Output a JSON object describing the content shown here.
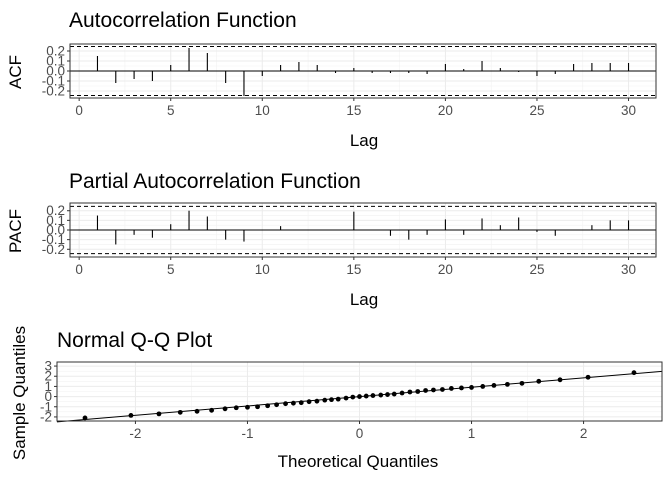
{
  "chart_data": [
    {
      "type": "bar",
      "title": "Autocorrelation Function",
      "xlabel": "Lag",
      "ylabel": "ACF",
      "xlim": [
        -0.5,
        31.5
      ],
      "ylim": [
        -0.27,
        0.27
      ],
      "xticks": [
        "0",
        "5",
        "10",
        "15",
        "20",
        "25",
        "30"
      ],
      "yticks": [
        "-0.2",
        "-0.1",
        "0.0",
        "0.1",
        "0.2"
      ],
      "confidence_bounds": [
        -0.245,
        0.245
      ],
      "x": [
        1,
        2,
        3,
        4,
        5,
        6,
        7,
        8,
        9,
        10,
        11,
        12,
        13,
        14,
        15,
        16,
        17,
        18,
        19,
        20,
        21,
        22,
        23,
        24,
        25,
        26,
        27,
        28,
        29,
        30
      ],
      "values": [
        0.15,
        -0.12,
        -0.08,
        -0.1,
        0.06,
        0.23,
        0.18,
        -0.12,
        -0.25,
        -0.05,
        0.06,
        0.09,
        0.06,
        -0.02,
        0.03,
        -0.02,
        -0.02,
        -0.02,
        -0.03,
        0.07,
        0.02,
        0.1,
        0.03,
        -0.01,
        -0.05,
        -0.03,
        0.07,
        0.08,
        0.08,
        0.08
      ],
      "grid": true
    },
    {
      "type": "bar",
      "title": "Partial Autocorrelation Function",
      "xlabel": "Lag",
      "ylabel": "PACF",
      "xlim": [
        -0.5,
        31.5
      ],
      "ylim": [
        -0.28,
        0.28
      ],
      "xticks": [
        "0",
        "5",
        "10",
        "15",
        "20",
        "25",
        "30"
      ],
      "yticks": [
        "-0.2",
        "-0.1",
        "0.0",
        "0.1",
        "0.2"
      ],
      "confidence_bounds": [
        -0.245,
        0.245
      ],
      "x": [
        1,
        2,
        3,
        4,
        5,
        6,
        7,
        8,
        9,
        10,
        11,
        12,
        13,
        14,
        15,
        16,
        17,
        18,
        19,
        20,
        21,
        22,
        23,
        24,
        25,
        26,
        27,
        28,
        29,
        30
      ],
      "values": [
        0.15,
        -0.15,
        -0.05,
        -0.08,
        0.06,
        0.2,
        0.14,
        -0.1,
        -0.12,
        0.0,
        0.04,
        0.0,
        0.0,
        0.0,
        0.19,
        0.0,
        -0.06,
        -0.1,
        -0.05,
        0.11,
        -0.05,
        0.12,
        0.05,
        0.13,
        -0.02,
        -0.06,
        0.0,
        0.05,
        0.1,
        0.1
      ],
      "grid": true
    },
    {
      "type": "scatter",
      "title": "Normal Q-Q Plot",
      "xlabel": "Theoretical Quantiles",
      "ylabel": "Sample Quantiles",
      "xlim": [
        -2.7,
        2.7
      ],
      "ylim": [
        -2.4,
        3.4
      ],
      "xticks": [
        "-2",
        "-1",
        "0",
        "1",
        "2"
      ],
      "yticks": [
        "-2",
        "-1",
        "0",
        "1",
        "2",
        "3"
      ],
      "reference_line": {
        "intercept": 0.0,
        "slope": 0.92
      },
      "x": [
        -2.45,
        -2.04,
        -1.79,
        -1.6,
        -1.45,
        -1.32,
        -1.2,
        -1.1,
        -1.0,
        -0.91,
        -0.82,
        -0.74,
        -0.66,
        -0.59,
        -0.52,
        -0.45,
        -0.38,
        -0.31,
        -0.25,
        -0.19,
        -0.12,
        -0.06,
        0.0,
        0.06,
        0.12,
        0.19,
        0.25,
        0.31,
        0.38,
        0.45,
        0.52,
        0.59,
        0.66,
        0.74,
        0.82,
        0.91,
        1.0,
        1.1,
        1.2,
        1.32,
        1.45,
        1.6,
        1.79,
        2.04,
        2.45
      ],
      "y": [
        -2.1,
        -1.85,
        -1.7,
        -1.55,
        -1.45,
        -1.35,
        -1.2,
        -1.1,
        -1.05,
        -1.0,
        -0.9,
        -0.8,
        -0.7,
        -0.65,
        -0.6,
        -0.5,
        -0.45,
        -0.35,
        -0.3,
        -0.25,
        -0.15,
        -0.05,
        0.0,
        0.05,
        0.1,
        0.15,
        0.2,
        0.25,
        0.35,
        0.45,
        0.5,
        0.6,
        0.65,
        0.7,
        0.8,
        0.85,
        0.9,
        1.0,
        1.1,
        1.2,
        1.3,
        1.5,
        1.65,
        1.9,
        2.35
      ],
      "grid": true
    }
  ]
}
